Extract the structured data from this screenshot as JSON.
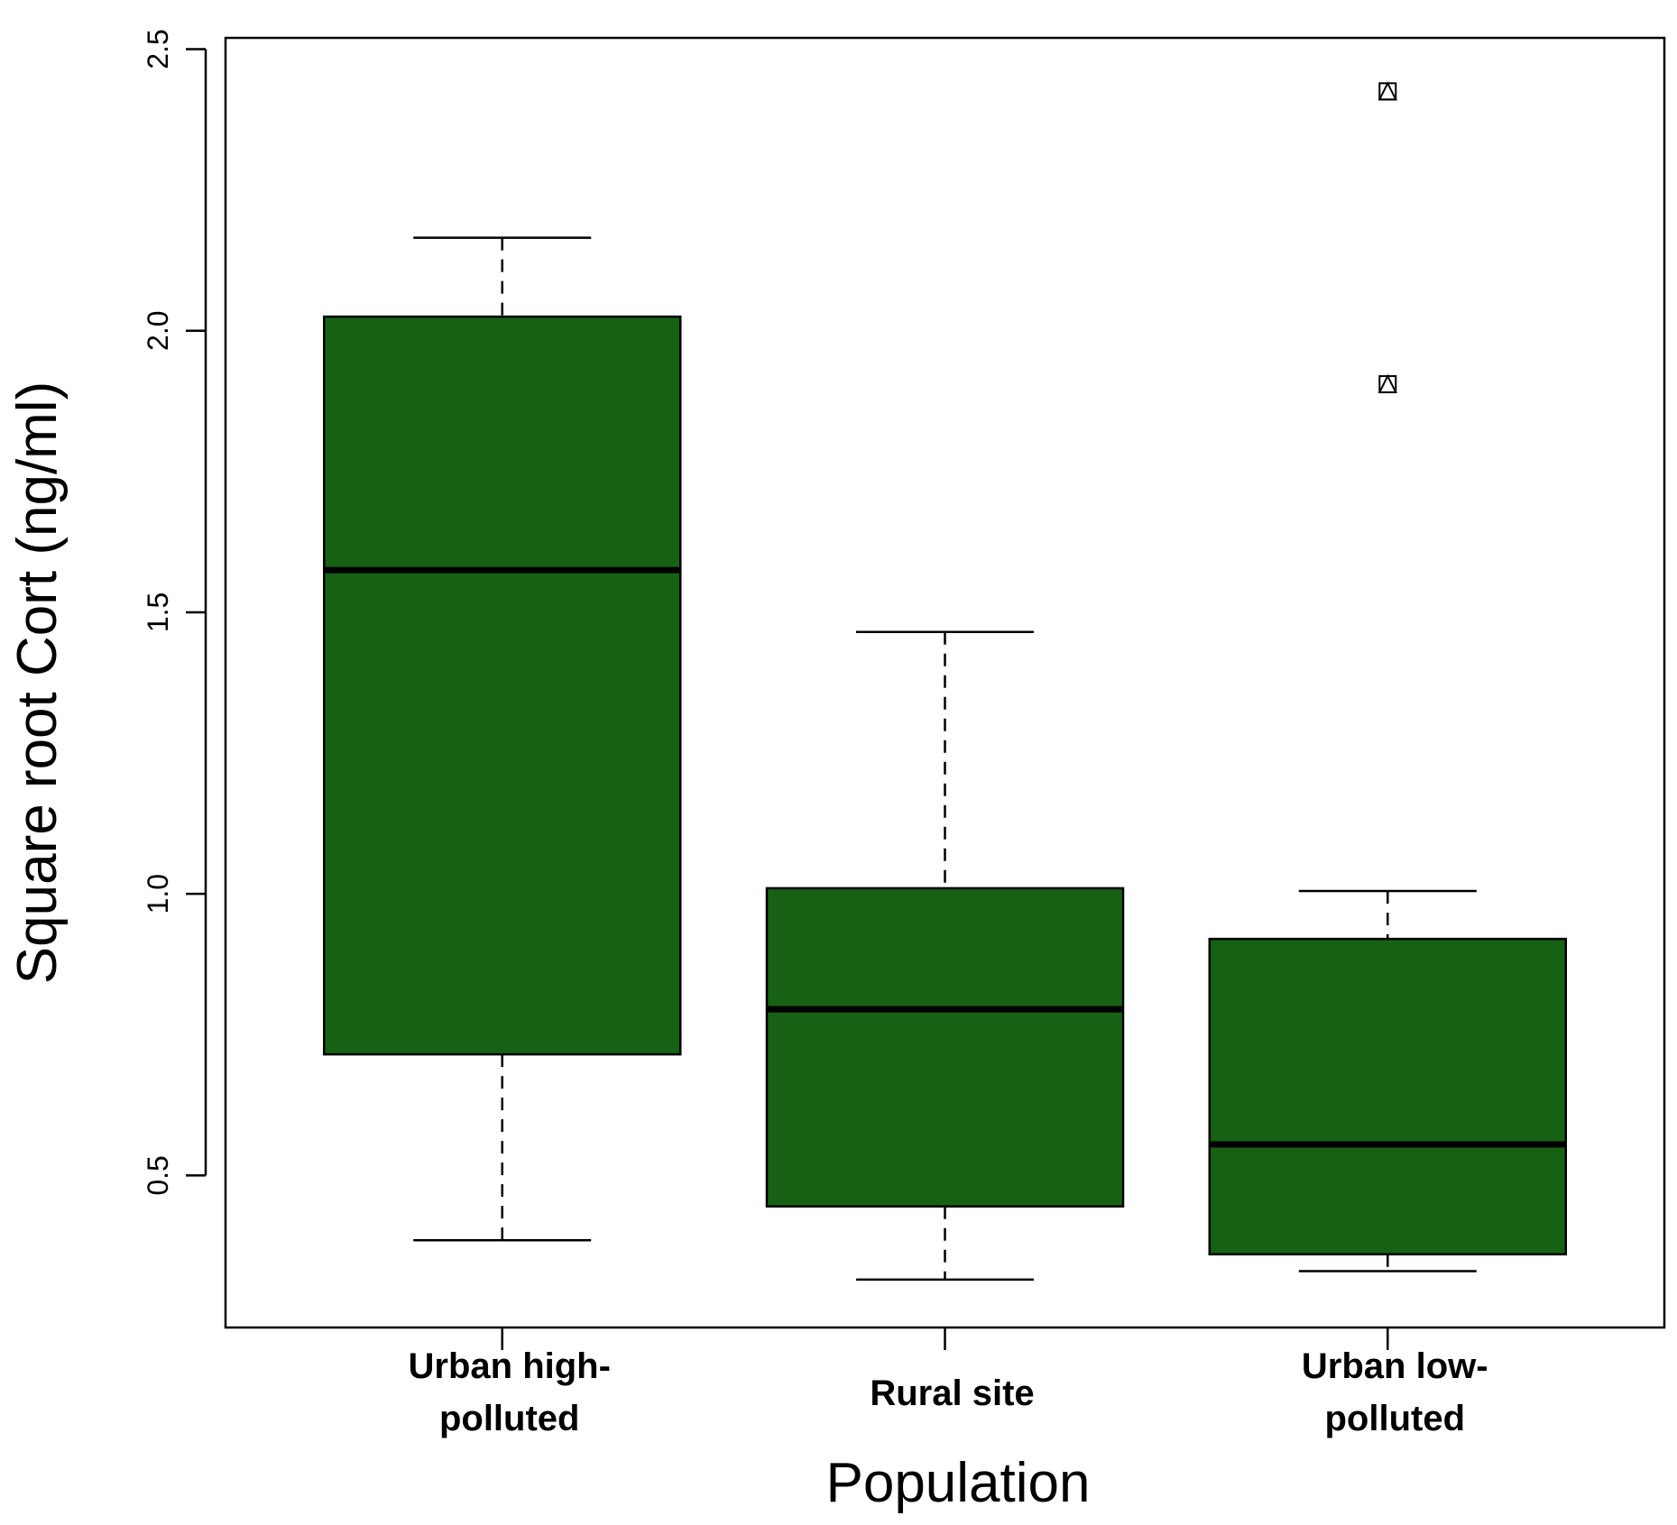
{
  "chart_data": {
    "type": "boxplot",
    "xlabel": "Population",
    "ylabel": "Square root Cort (ng/ml)",
    "ylim": [
      0.23,
      2.52
    ],
    "yticks": [
      "0.5",
      "1.0",
      "1.5",
      "2.0",
      "2.5"
    ],
    "ytick_values": [
      0.5,
      1.0,
      1.5,
      2.0,
      2.5
    ],
    "box_color": "#176114",
    "categories": [
      {
        "label_lines": [
          "Urban high-",
          "polluted"
        ],
        "whisker_low": 0.385,
        "q1": 0.715,
        "median": 1.575,
        "q3": 2.025,
        "whisker_high": 2.165,
        "outliers": []
      },
      {
        "label_lines": [
          "Rural site"
        ],
        "whisker_low": 0.315,
        "q1": 0.445,
        "median": 0.795,
        "q3": 1.01,
        "whisker_high": 1.465,
        "outliers": []
      },
      {
        "label_lines": [
          "Urban low-",
          "polluted"
        ],
        "whisker_low": 0.33,
        "q1": 0.36,
        "median": 0.555,
        "q3": 0.92,
        "whisker_high": 1.005,
        "outliers": [
          1.905,
          2.425
        ]
      }
    ]
  }
}
